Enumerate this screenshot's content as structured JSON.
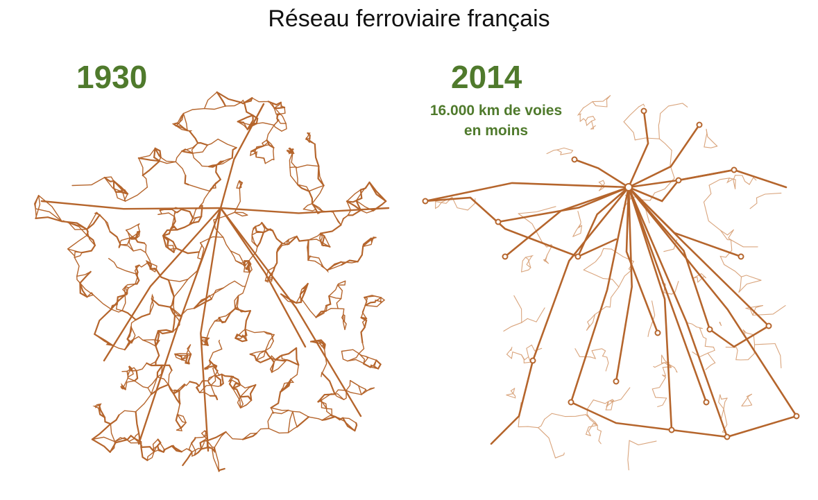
{
  "title": "Réseau ferroviaire français",
  "maps": [
    {
      "year": "1930"
    },
    {
      "year": "2014",
      "subtitle_line1": "16.000 km de voies",
      "subtitle_line2": "en moins"
    }
  ],
  "colors": {
    "rail": "#b5652c",
    "rail_light": "#d9a47c",
    "label_green": "#4f7a2c",
    "title_text": "#111111"
  }
}
